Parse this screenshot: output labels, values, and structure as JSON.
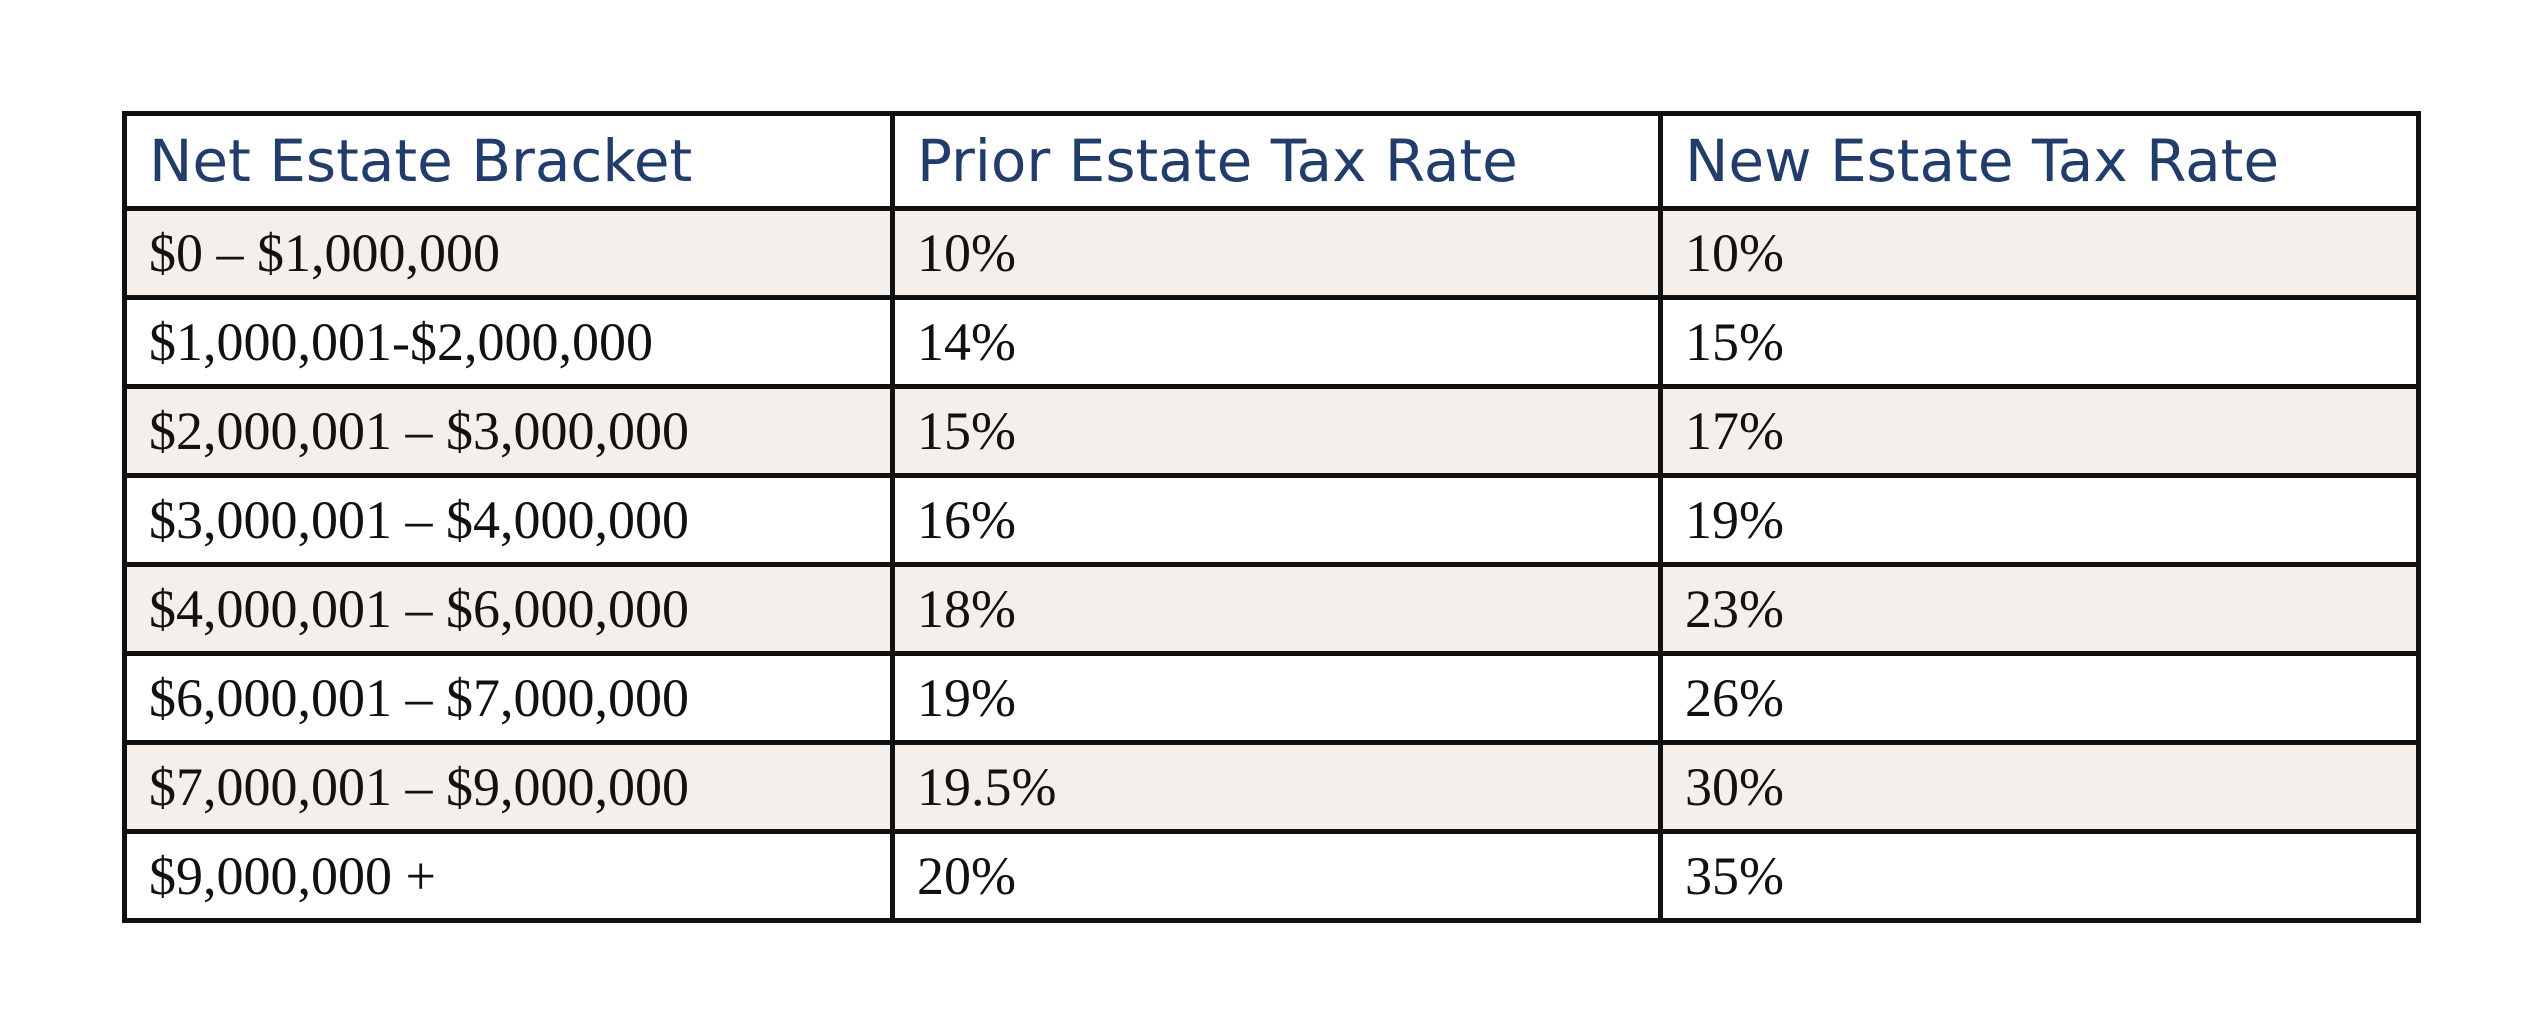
{
  "table": {
    "headers": {
      "bracket": "Net Estate Bracket",
      "prior": "Prior Estate Tax Rate",
      "new": "New Estate Tax Rate"
    },
    "rows": [
      {
        "bracket": "$0 – $1,000,000",
        "prior": "10%",
        "new": "10%"
      },
      {
        "bracket": "$1,000,001-$2,000,000",
        "prior": "14%",
        "new": "15%"
      },
      {
        "bracket": "$2,000,001 – $3,000,000",
        "prior": "15%",
        "new": "17%"
      },
      {
        "bracket": "$3,000,001 – $4,000,000",
        "prior": "16%",
        "new": "19%"
      },
      {
        "bracket": "$4,000,001 – $6,000,000",
        "prior": "18%",
        "new": "23%"
      },
      {
        "bracket": "$6,000,001 – $7,000,000",
        "prior": "19%",
        "new": "26%"
      },
      {
        "bracket": "$7,000,001 – $9,000,000",
        "prior": "19.5%",
        "new": "30%"
      },
      {
        "bracket": "$9,000,000 +",
        "prior": "20%",
        "new": "35%"
      }
    ]
  },
  "colors": {
    "header_text": "#223d6b",
    "shaded_row": "#f5efeb",
    "border": "#111111"
  }
}
